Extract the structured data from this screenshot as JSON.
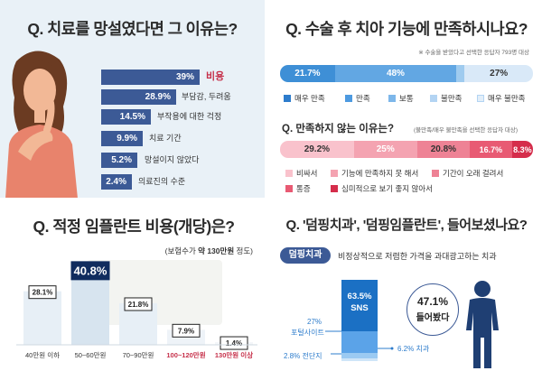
{
  "panel1": {
    "title": "Q. 치료를 망설였다면 그 이유는?",
    "bars": [
      {
        "value_label": "39%",
        "value": 39,
        "label": "비용"
      },
      {
        "value_label": "28.9%",
        "value": 28.9,
        "label": "부담감, 두려움"
      },
      {
        "value_label": "14.5%",
        "value": 14.5,
        "label": "부작용에 대한 걱정"
      },
      {
        "value_label": "9.9%",
        "value": 9.9,
        "label": "치료 기간"
      },
      {
        "value_label": "5.2%",
        "value": 5.2,
        "label": "망설이지 않았다"
      },
      {
        "value_label": "2.4%",
        "value": 2.4,
        "label": "의료진의 수준"
      }
    ]
  },
  "panel2": {
    "title": "Q. 수술 후 치아 기능에 만족하시나요?",
    "note": "※ 수술을 받았다고 선택한 응답자 793명 대상",
    "satisfaction": {
      "segments": [
        {
          "value_label": "21.7%",
          "value": 21.7,
          "color": "#3e8fd6",
          "text_color": "#ffffff"
        },
        {
          "value_label": "48%",
          "value": 48,
          "color": "#62a7e3",
          "text_color": "#ffffff"
        },
        {
          "value_label": "",
          "value": 3.3,
          "color": "#9fcbef",
          "text_color": "#ffffff"
        },
        {
          "value_label": "27%",
          "value": 27,
          "color": "#d9e9f8",
          "text_color": "#333333"
        }
      ],
      "legend": [
        "매우 만족",
        "만족",
        "보통",
        "불만족",
        "매우 불만족"
      ],
      "legend_colors": [
        "#2d7ccc",
        "#4d9ae0",
        "#7db7ea",
        "#b3d4f3",
        "#e2eef9"
      ]
    },
    "sub_title": "Q. 만족하지 않는 이유는?",
    "sub_note": "(불만족/매우 불만족을 선택한 응답자 대상)",
    "dissatisfaction": {
      "segments": [
        {
          "value_label": "29.2%",
          "value": 29.2,
          "color": "#f9c2cc",
          "text_color": "#333333"
        },
        {
          "value_label": "25%",
          "value": 25,
          "color": "#f4a3b1",
          "text_color": "#ffffff"
        },
        {
          "value_label": "20.8%",
          "value": 20.8,
          "color": "#ee8295",
          "text_color": "#333333"
        },
        {
          "value_label": "16.7%",
          "value": 16.7,
          "color": "#e85a73",
          "text_color": "#ffffff"
        },
        {
          "value_label": "8.3%",
          "value": 8.3,
          "color": "#d52d4b",
          "text_color": "#ffffff"
        }
      ],
      "legend": [
        "비싸서",
        "기능에 만족하지 못 해서",
        "기간이 오래 걸려서",
        "통증",
        "심미적으로 보기 좋지 않아서"
      ],
      "legend_colors": [
        "#f9c2cc",
        "#f4a3b1",
        "#ee8295",
        "#e85a73",
        "#d52d4b"
      ]
    }
  },
  "panel3": {
    "title": "Q. 적정 임플란트 비용(개당)은?",
    "note_prefix": "(보험수가 ",
    "note_bold": "약 130만원",
    "note_suffix": " 정도)",
    "chart_data": {
      "type": "bar",
      "categories": [
        "40만원 이하",
        "50~60만원",
        "70~90만원",
        "100~120만원",
        "130만원 이상"
      ],
      "values": [
        28.1,
        40.8,
        21.8,
        7.9,
        1.4
      ],
      "value_labels": [
        "28.1%",
        "40.8%",
        "21.8%",
        "7.9%",
        "1.4%"
      ],
      "ylim": [
        0,
        45
      ]
    }
  },
  "panel4": {
    "title": "Q. '덤핑치과', '덤핑임플란트', 들어보셨나요?",
    "badge": "덤핑치과",
    "definition": "비정상적으로 저렴한 가격을 과대광고하는 치과",
    "sns_value": "63.5%",
    "sns_label": "SNS",
    "heard_value": "47.1%",
    "heard_label": "들어봤다",
    "portal_value": "27%",
    "portal_label": "포털사이트",
    "flyer_label": "2.8% 전단지",
    "clinic_label": "6.2% 치과",
    "chart_data": {
      "type": "bar",
      "categories": [
        "SNS",
        "포털사이트",
        "치과",
        "전단지"
      ],
      "values": [
        63.5,
        27,
        6.2,
        2.8
      ]
    }
  }
}
